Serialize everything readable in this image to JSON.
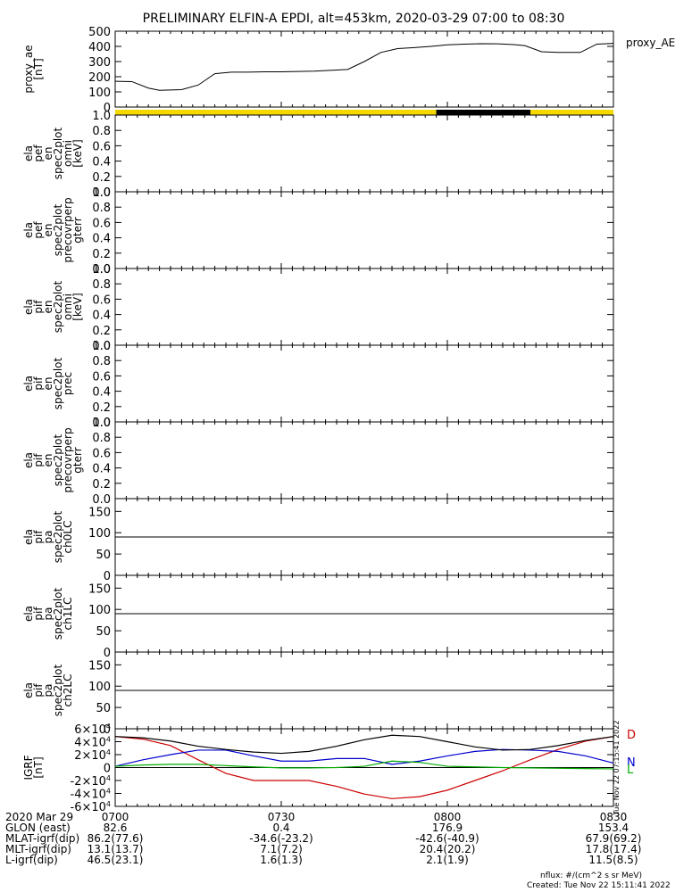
{
  "title": "PRELIMINARY ELFIN-A EPDI, alt=453km, 2020-03-29 07:00 to 08:30",
  "chart_data": [
    {
      "type": "line",
      "panel": "proxy_ae",
      "ylabel_lines": [
        "proxy_ae",
        "[nT]"
      ],
      "legend": "proxy_AE",
      "ylim": [
        0,
        500
      ],
      "yticks": [
        "0",
        "100",
        "200",
        "300",
        "400",
        "500"
      ],
      "series": [
        {
          "name": "proxy_AE",
          "x": [
            "07:00",
            "07:03",
            "07:06",
            "07:08",
            "07:12",
            "07:15",
            "07:18",
            "07:21",
            "07:24",
            "07:27",
            "07:30",
            "07:36",
            "07:42",
            "07:45",
            "07:48",
            "07:51",
            "07:54",
            "07:57",
            "08:00",
            "08:03",
            "08:06",
            "08:09",
            "08:12",
            "08:14",
            "08:17",
            "08:20",
            "08:24",
            "08:27",
            "08:30"
          ],
          "values": [
            170,
            168,
            125,
            110,
            115,
            145,
            220,
            230,
            230,
            232,
            232,
            237,
            248,
            300,
            360,
            385,
            392,
            400,
            410,
            415,
            418,
            417,
            412,
            405,
            365,
            360,
            360,
            415,
            420
          ]
        }
      ]
    },
    {
      "type": "line",
      "panel": "spin_status_bar",
      "segments": [
        {
          "start": "07:00",
          "end": "07:58",
          "color": "#F5D800"
        },
        {
          "start": "07:58",
          "end": "08:15",
          "color": "#000000"
        },
        {
          "start": "08:15",
          "end": "08:30",
          "color": "#F5D800"
        }
      ]
    },
    {
      "type": "line",
      "panel": "ela_pef_en_spec2plot_omni",
      "ylabel_lines": [
        "ela",
        "pef",
        "en",
        "spec2plot",
        "omni",
        "[keV]"
      ],
      "ylim": [
        0,
        1
      ],
      "yticks": [
        "0.0",
        "0.2",
        "0.4",
        "0.6",
        "0.8",
        "1.0"
      ],
      "series": []
    },
    {
      "type": "line",
      "panel": "ela_pef_en_spec2plot_precovrperp_gterr",
      "ylabel_lines": [
        "ela",
        "pef",
        "en",
        "spec2plot",
        "precovrperp",
        "gterr"
      ],
      "ylim": [
        0,
        1
      ],
      "yticks": [
        "0.0",
        "0.2",
        "0.4",
        "0.6",
        "0.8",
        "1.0"
      ],
      "series": []
    },
    {
      "type": "line",
      "panel": "ela_pif_en_spec2plot_omni",
      "ylabel_lines": [
        "ela",
        "pif",
        "en",
        "spec2plot",
        "omni",
        "[keV]"
      ],
      "ylim": [
        0,
        1
      ],
      "yticks": [
        "0.0",
        "0.2",
        "0.4",
        "0.6",
        "0.8",
        "1.0"
      ],
      "series": []
    },
    {
      "type": "line",
      "panel": "ela_pif_en_spec2plot_prec",
      "ylabel_lines": [
        "ela",
        "pif",
        "en",
        "spec2plot",
        "prec"
      ],
      "ylim": [
        0,
        1
      ],
      "yticks": [
        "0.0",
        "0.2",
        "0.4",
        "0.6",
        "0.8",
        "1.0"
      ],
      "series": []
    },
    {
      "type": "line",
      "panel": "ela_pif_en_spec2plot_precovrperp_gterr",
      "ylabel_lines": [
        "ela",
        "pif",
        "en",
        "spec2plot",
        "precovrperp",
        "gterr"
      ],
      "ylim": [
        0,
        1
      ],
      "yticks": [
        "0.0",
        "0.2",
        "0.4",
        "0.6",
        "0.8",
        "1.0"
      ],
      "series": []
    },
    {
      "type": "line",
      "panel": "ela_pif_pa_spec2plot_ch0LC",
      "ylabel_lines": [
        "ela",
        "pif",
        "pa",
        "spec2plot",
        "ch0LC"
      ],
      "ylim": [
        0,
        180
      ],
      "yticks": [
        "0",
        "50",
        "100",
        "150"
      ],
      "reference_line": 90,
      "series": []
    },
    {
      "type": "line",
      "panel": "ela_pif_pa_spec2plot_ch1LC",
      "ylabel_lines": [
        "ela",
        "pif",
        "pa",
        "spec2plot",
        "ch1LC"
      ],
      "ylim": [
        0,
        180
      ],
      "yticks": [
        "0",
        "50",
        "100",
        "150"
      ],
      "reference_line": 90,
      "series": []
    },
    {
      "type": "line",
      "panel": "ela_pif_pa_spec2plot_ch2LC",
      "ylabel_lines": [
        "ela",
        "pif",
        "pa",
        "spec2plot",
        "ch2LC"
      ],
      "ylim": [
        0,
        180
      ],
      "yticks": [
        "0",
        "50",
        "100",
        "150"
      ],
      "reference_line": 90,
      "series": []
    },
    {
      "type": "line",
      "panel": "igrf",
      "ylabel_lines": [
        "IGRF",
        "[nT]"
      ],
      "ylim": [
        -60000,
        60000
      ],
      "yticks": [
        {
          "mant": "-6",
          "exp": "4"
        },
        {
          "mant": "-4",
          "exp": "4"
        },
        {
          "mant": "-2",
          "exp": "4"
        },
        {
          "mant": "0",
          "exp": ""
        },
        {
          "mant": "2",
          "exp": "4"
        },
        {
          "mant": "4",
          "exp": "4"
        },
        {
          "mant": "6",
          "exp": "4"
        }
      ],
      "ytick_values": [
        -60000,
        -40000,
        -20000,
        0,
        20000,
        40000,
        60000
      ],
      "series": [
        {
          "name": "D",
          "color": "#CC0000",
          "x": [
            "07:00",
            "07:05",
            "07:10",
            "07:15",
            "07:20",
            "07:25",
            "07:30",
            "07:35",
            "07:40",
            "07:45",
            "07:50",
            "07:55",
            "08:00",
            "08:05",
            "08:10",
            "08:15",
            "08:20",
            "08:25",
            "08:30"
          ],
          "values": [
            48000,
            44000,
            34000,
            12000,
            -9000,
            -20000,
            -20000,
            -20000,
            -29000,
            -41000,
            -48000,
            -45000,
            -35000,
            -20000,
            -5000,
            12000,
            28000,
            41000,
            48000
          ]
        },
        {
          "name": "N",
          "color": "#0000CC",
          "x": [
            "07:00",
            "07:05",
            "07:10",
            "07:15",
            "07:20",
            "07:25",
            "07:30",
            "07:35",
            "07:40",
            "07:45",
            "07:50",
            "07:55",
            "08:00",
            "08:05",
            "08:10",
            "08:15",
            "08:20",
            "08:25",
            "08:30"
          ],
          "values": [
            2000,
            12000,
            20000,
            27000,
            27000,
            18000,
            10000,
            10000,
            14000,
            14000,
            5000,
            10000,
            18000,
            25000,
            28000,
            27000,
            25000,
            18000,
            7000
          ]
        },
        {
          "name": "L",
          "color": "#00AA00",
          "x": [
            "07:00",
            "07:05",
            "07:10",
            "07:15",
            "07:20",
            "07:25",
            "07:30",
            "07:35",
            "07:40",
            "07:45",
            "07:50",
            "07:55",
            "08:00",
            "08:05",
            "08:10",
            "08:15",
            "08:20",
            "08:25",
            "08:30"
          ],
          "values": [
            2000,
            4000,
            5000,
            5000,
            3000,
            1000,
            -500,
            -500,
            0,
            2000,
            10000,
            8000,
            2000,
            1000,
            0,
            -500,
            -1000,
            -1500,
            -2000
          ]
        },
        {
          "name": "",
          "color": "#000000",
          "x": [
            "07:00",
            "07:05",
            "07:10",
            "07:15",
            "07:20",
            "07:25",
            "07:30",
            "07:35",
            "07:40",
            "07:45",
            "07:50",
            "07:55",
            "08:00",
            "08:05",
            "08:10",
            "08:15",
            "08:20",
            "08:25",
            "08:30"
          ],
          "values": [
            48000,
            46000,
            41000,
            33000,
            28000,
            24000,
            22000,
            25000,
            33000,
            43000,
            50000,
            48000,
            40000,
            32000,
            27000,
            28000,
            34000,
            42000,
            48000
          ]
        }
      ],
      "legend": [
        "D",
        "N",
        "L"
      ],
      "side_text": "Tue Nov 22 07:15:41 2022"
    }
  ],
  "xaxis": {
    "ticks": [
      "0700",
      "0730",
      "0800",
      "0830"
    ],
    "tick_times": [
      "07:00",
      "07:30",
      "08:00",
      "08:30"
    ],
    "range": [
      "07:00",
      "08:30"
    ],
    "rows": [
      {
        "label": "2020 Mar 29",
        "values": [
          "0700",
          "0730",
          "0800",
          "0830"
        ]
      },
      {
        "label": "GLON (east)",
        "values": [
          "82.6",
          "0.4",
          "176.9",
          "153.4"
        ]
      },
      {
        "label": "MLAT-igrf(dip)",
        "values": [
          "86.2(77.6)",
          "-34.6(-23.2)",
          "-42.6(-40.9)",
          "67.9(69.2)"
        ]
      },
      {
        "label": "MLT-igrf(dip)",
        "values": [
          "13.1(13.7)",
          "7.1(7.2)",
          "20.4(20.2)",
          "17.8(17.4)"
        ]
      },
      {
        "label": "L-igrf(dip)",
        "values": [
          "46.5(23.1)",
          "1.6(1.3)",
          "2.1(1.9)",
          "11.5(8.5)"
        ]
      }
    ]
  },
  "footer": {
    "units": "nflux: #/(cm^2 s sr MeV)",
    "created": "Created: Tue Nov 22 15:11:41 2022"
  }
}
